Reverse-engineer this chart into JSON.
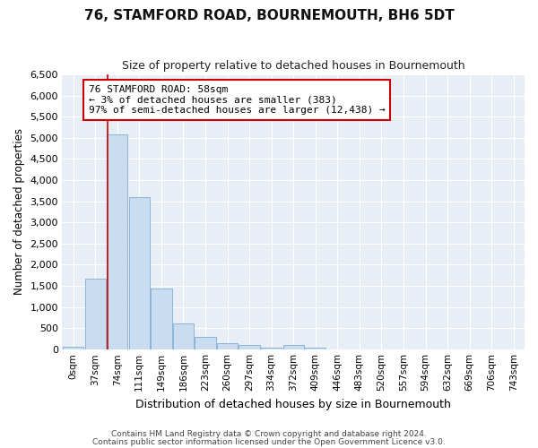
{
  "title": "76, STAMFORD ROAD, BOURNEMOUTH, BH6 5DT",
  "subtitle": "Size of property relative to detached houses in Bournemouth",
  "xlabel": "Distribution of detached houses by size in Bournemouth",
  "ylabel": "Number of detached properties",
  "bar_color": "#c9dcf0",
  "bar_edge_color": "#8ab4d8",
  "background_color": "#e8eef6",
  "grid_color": "#ffffff",
  "fig_bg_color": "#ffffff",
  "categories": [
    "0sqm",
    "37sqm",
    "74sqm",
    "111sqm",
    "149sqm",
    "186sqm",
    "223sqm",
    "260sqm",
    "297sqm",
    "334sqm",
    "372sqm",
    "409sqm",
    "446sqm",
    "483sqm",
    "520sqm",
    "557sqm",
    "594sqm",
    "632sqm",
    "669sqm",
    "706sqm",
    "743sqm"
  ],
  "values": [
    70,
    1670,
    5080,
    3600,
    1430,
    620,
    300,
    150,
    100,
    50,
    100,
    50,
    0,
    0,
    0,
    0,
    0,
    0,
    0,
    0,
    0
  ],
  "ylim": [
    0,
    6500
  ],
  "yticks": [
    0,
    500,
    1000,
    1500,
    2000,
    2500,
    3000,
    3500,
    4000,
    4500,
    5000,
    5500,
    6000,
    6500
  ],
  "property_line_color": "#cc0000",
  "property_line_xindex": 1.57,
  "annotation_text": "76 STAMFORD ROAD: 58sqm\n← 3% of detached houses are smaller (383)\n97% of semi-detached houses are larger (12,438) →",
  "annotation_box_facecolor": "#ffffff",
  "annotation_box_edgecolor": "#cc0000",
  "footnote1": "Contains HM Land Registry data © Crown copyright and database right 2024.",
  "footnote2": "Contains public sector information licensed under the Open Government Licence v3.0."
}
